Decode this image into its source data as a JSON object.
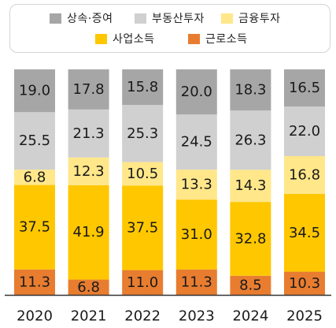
{
  "chart_data": {
    "type": "bar",
    "stacked": true,
    "normalized": true,
    "categories": [
      "2020",
      "2021",
      "2022",
      "2023",
      "2024",
      "2025"
    ],
    "series": [
      {
        "name": "근로소득",
        "color": "#E87D30",
        "values": [
          11.3,
          6.8,
          11.0,
          11.3,
          8.5,
          10.3
        ]
      },
      {
        "name": "사업소득",
        "color": "#FFC700",
        "values": [
          37.5,
          41.9,
          37.5,
          31.0,
          32.8,
          34.5
        ]
      },
      {
        "name": "금융투자",
        "color": "#FFE78A",
        "values": [
          6.8,
          12.3,
          10.5,
          13.3,
          14.3,
          16.8
        ]
      },
      {
        "name": "부동산투자",
        "color": "#D0D0D0",
        "values": [
          25.5,
          21.3,
          25.3,
          24.5,
          26.3,
          22.0
        ]
      },
      {
        "name": "상속·증여",
        "color": "#A6A6A6",
        "values": [
          19.0,
          17.8,
          15.8,
          20.0,
          18.3,
          16.5
        ]
      }
    ],
    "legend_order": [
      "상속·증여",
      "부동산투자",
      "금융투자",
      "사업소득",
      "근로소득"
    ],
    "legend_position": "top",
    "grid": false,
    "xlabel": "",
    "ylabel": ""
  }
}
